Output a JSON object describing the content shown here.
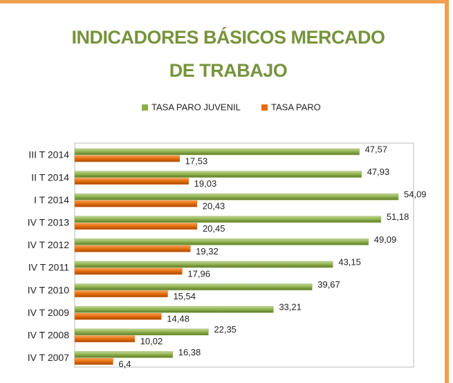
{
  "chart_data": {
    "type": "barh",
    "title": "INDICADORES BÁSICOS MERCADO DE TRABAJO",
    "categories": [
      "III T 2014",
      "II T 2014",
      "I T 2014",
      "IV T 2013",
      "IV T 2012",
      "IV T 2011",
      "IV T 2010",
      "IV T 2009",
      "IV T 2008",
      "IV T 2007"
    ],
    "series": [
      {
        "name": "TASA PARO JUVENIL",
        "color": "#8db04a",
        "values": [
          47.57,
          47.93,
          54.09,
          51.18,
          49.09,
          43.15,
          39.67,
          33.21,
          22.35,
          16.38
        ],
        "value_labels": [
          "47,57",
          "47,93",
          "54,09",
          "51,18",
          "49,09",
          "43,15",
          "39,67",
          "33,21",
          "22,35",
          "16,38"
        ]
      },
      {
        "name": "TASA PARO",
        "color": "#e46c0a",
        "values": [
          17.53,
          19.03,
          20.43,
          20.45,
          19.32,
          17.96,
          15.54,
          14.48,
          10.02,
          6.4
        ],
        "value_labels": [
          "17,53",
          "19,03",
          "20,43",
          "20,45",
          "19,32",
          "17,96",
          "15,54",
          "14,48",
          "10,02",
          "6,4"
        ]
      }
    ],
    "legend": "top"
  }
}
